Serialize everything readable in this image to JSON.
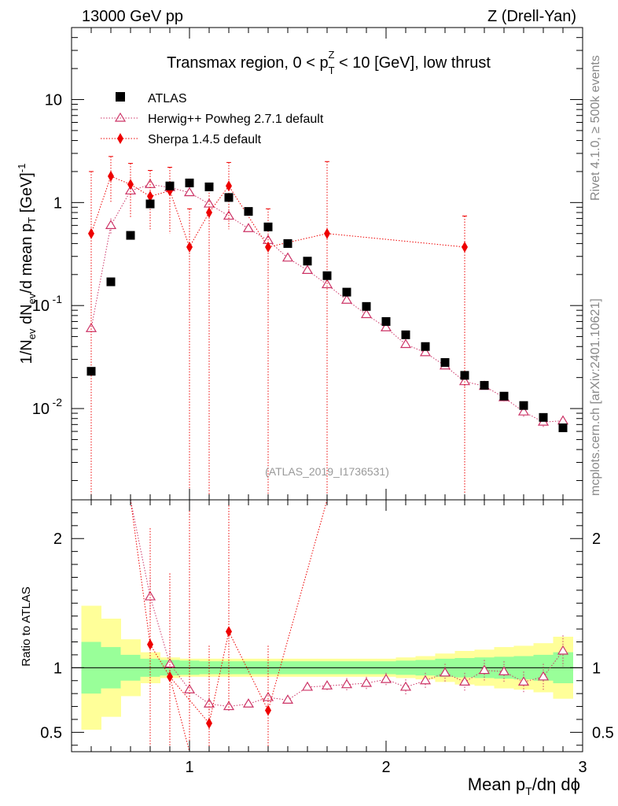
{
  "header": {
    "left": "13000 GeV pp",
    "right": "Z (Drell-Yan)"
  },
  "side_text": {
    "rivet": "Rivet 4.1.0, ≥ 500k events",
    "mcplots": "mcplots.cern.ch [arXiv:2401.10621]"
  },
  "chart_data": {
    "type": "scatter",
    "title": "Transmax region, 0 < p_T^Z < 10 [GeV], low thrust",
    "watermark": "(ATLAS_2019_I1736531)",
    "xlabel": "Mean p_T/dη dϕ",
    "ylabel": "1/N_ev dN_ev/d mean p_T [GeV]^-1",
    "ratio_ylabel": "Ratio to ATLAS",
    "xlim": [
      0.4,
      3.0
    ],
    "ylim": [
      0.0013,
      50
    ],
    "yscale": "log",
    "ratio_ylim": [
      0.35,
      2.3
    ],
    "x_ticks": [
      "1",
      "2",
      "3"
    ],
    "y_ticks": [
      "10",
      "1",
      "10^-1",
      "10^-2"
    ],
    "ratio_ticks": [
      "0.5",
      "1",
      "2"
    ],
    "legend": [
      {
        "label": "ATLAS",
        "marker": "square",
        "color": "#000000"
      },
      {
        "label": "Herwig++ Powheg 2.7.1 default",
        "marker": "open-triangle",
        "color": "#cc3366"
      },
      {
        "label": "Sherpa 1.4.5 default",
        "marker": "diamond",
        "color": "#ee0000"
      }
    ],
    "series": [
      {
        "name": "ATLAS",
        "x": [
          0.5,
          0.6,
          0.7,
          0.8,
          0.9,
          1.0,
          1.1,
          1.2,
          1.3,
          1.4,
          1.5,
          1.6,
          1.7,
          1.8,
          1.9,
          2.0,
          2.1,
          2.2,
          2.3,
          2.4,
          2.5,
          2.6,
          2.7,
          2.8,
          2.9
        ],
        "y": [
          0.023,
          0.17,
          0.48,
          0.97,
          1.45,
          1.55,
          1.42,
          1.12,
          0.82,
          0.58,
          0.4,
          0.27,
          0.195,
          0.135,
          0.098,
          0.07,
          0.052,
          0.04,
          0.028,
          0.021,
          0.0168,
          0.0132,
          0.0107,
          0.0082,
          0.0065
        ]
      },
      {
        "name": "Herwig++ Powheg 2.7.1 default",
        "x": [
          0.5,
          0.6,
          0.7,
          0.8,
          0.9,
          1.0,
          1.1,
          1.2,
          1.3,
          1.4,
          1.5,
          1.6,
          1.7,
          1.8,
          1.9,
          2.0,
          2.1,
          2.2,
          2.3,
          2.4,
          2.5,
          2.6,
          2.7,
          2.8,
          2.9
        ],
        "y": [
          0.06,
          0.6,
          1.3,
          1.5,
          1.4,
          1.25,
          0.97,
          0.74,
          0.56,
          0.43,
          0.29,
          0.22,
          0.16,
          0.113,
          0.082,
          0.061,
          0.042,
          0.035,
          0.026,
          0.0183,
          0.0165,
          0.0128,
          0.0093,
          0.0074,
          0.0076
        ],
        "err": [
          0,
          0.1,
          0.15,
          0.1,
          0.08,
          0.06,
          0.05,
          0.04,
          0.03,
          0.02,
          0.015,
          0.01,
          0.008,
          0.006,
          0.004,
          0.003,
          0.003,
          0.002,
          0.002,
          0.002,
          0.0015,
          0.0012,
          0.001,
          0.0008,
          0.0009
        ]
      },
      {
        "name": "Sherpa 1.4.5 default",
        "x": [
          0.5,
          0.6,
          0.7,
          0.8,
          0.9,
          1.0,
          1.1,
          1.2,
          1.4,
          1.7,
          2.4
        ],
        "y": [
          0.5,
          1.8,
          1.5,
          1.15,
          1.3,
          0.37,
          0.8,
          1.45,
          0.37,
          0.5,
          0.37
        ],
        "err_low": [
          0.5,
          0.8,
          0.8,
          0.6,
          0.8,
          0.37,
          0.8,
          0.9,
          0.37,
          0.5,
          0.37
        ],
        "err_high": [
          1.5,
          1.0,
          0.9,
          0.9,
          0.9,
          0.5,
          0.7,
          1.0,
          0.5,
          2.0,
          0.37
        ]
      }
    ],
    "ratio_series": [
      {
        "name": "Herwig++ Powheg 2.7.1 default",
        "x": [
          0.8,
          0.9,
          1.0,
          1.1,
          1.2,
          1.3,
          1.4,
          1.5,
          1.6,
          1.7,
          1.8,
          1.9,
          2.0,
          2.1,
          2.2,
          2.3,
          2.4,
          2.5,
          2.6,
          2.7,
          2.8,
          2.9
        ],
        "y": [
          1.55,
          1.03,
          0.83,
          0.72,
          0.7,
          0.72,
          0.77,
          0.75,
          0.85,
          0.86,
          0.87,
          0.88,
          0.91,
          0.85,
          0.9,
          0.96,
          0.89,
          0.98,
          0.97,
          0.89,
          0.93,
          1.13
        ],
        "err": [
          0.15,
          0.1,
          0.06,
          0.05,
          0.04,
          0.03,
          0.03,
          0.03,
          0.03,
          0.04,
          0.05,
          0.05,
          0.05,
          0.06,
          0.06,
          0.07,
          0.07,
          0.08,
          0.08,
          0.08,
          0.1,
          0.12
        ]
      },
      {
        "name": "Sherpa 1.4.5 default",
        "x": [
          0.8,
          0.9,
          1.1,
          1.2,
          1.4
        ],
        "y": [
          1.18,
          0.93,
          0.57,
          1.28,
          0.67
        ],
        "err_low": [
          0.9,
          0.6,
          0.3,
          0.6,
          0.35
        ],
        "err_high": [
          0.9,
          0.8,
          0.6,
          1.2,
          0.5
        ],
        "offscale_lines": [
          {
            "x": [
              0.7,
              0.8
            ],
            "y": [
              3.0,
              1.18
            ]
          },
          {
            "x": [
              0.9,
              1.0
            ],
            "y": [
              0.93,
              0.2
            ]
          },
          {
            "x": [
              1.4,
              1.7
            ],
            "y": [
              0.67,
              3.0
            ]
          }
        ]
      }
    ],
    "ratio_bands": {
      "edges": [
        0.45,
        0.55,
        0.65,
        0.75,
        0.85,
        0.95,
        1.05,
        1.15,
        1.25,
        1.35,
        1.45,
        1.55,
        1.65,
        1.75,
        1.85,
        1.95,
        2.05,
        2.15,
        2.25,
        2.35,
        2.45,
        2.55,
        2.65,
        2.75,
        2.85,
        2.95
      ],
      "inner": [
        0.2,
        0.16,
        0.1,
        0.07,
        0.06,
        0.055,
        0.05,
        0.05,
        0.05,
        0.05,
        0.05,
        0.05,
        0.05,
        0.05,
        0.05,
        0.05,
        0.055,
        0.06,
        0.07,
        0.075,
        0.08,
        0.085,
        0.09,
        0.1,
        0.12
      ],
      "outer": [
        0.48,
        0.38,
        0.22,
        0.12,
        0.08,
        0.07,
        0.07,
        0.07,
        0.07,
        0.07,
        0.07,
        0.07,
        0.07,
        0.07,
        0.07,
        0.07,
        0.08,
        0.09,
        0.11,
        0.13,
        0.14,
        0.16,
        0.17,
        0.19,
        0.24
      ],
      "inner_color": "#99ff99",
      "outer_color": "#ffff99"
    }
  }
}
